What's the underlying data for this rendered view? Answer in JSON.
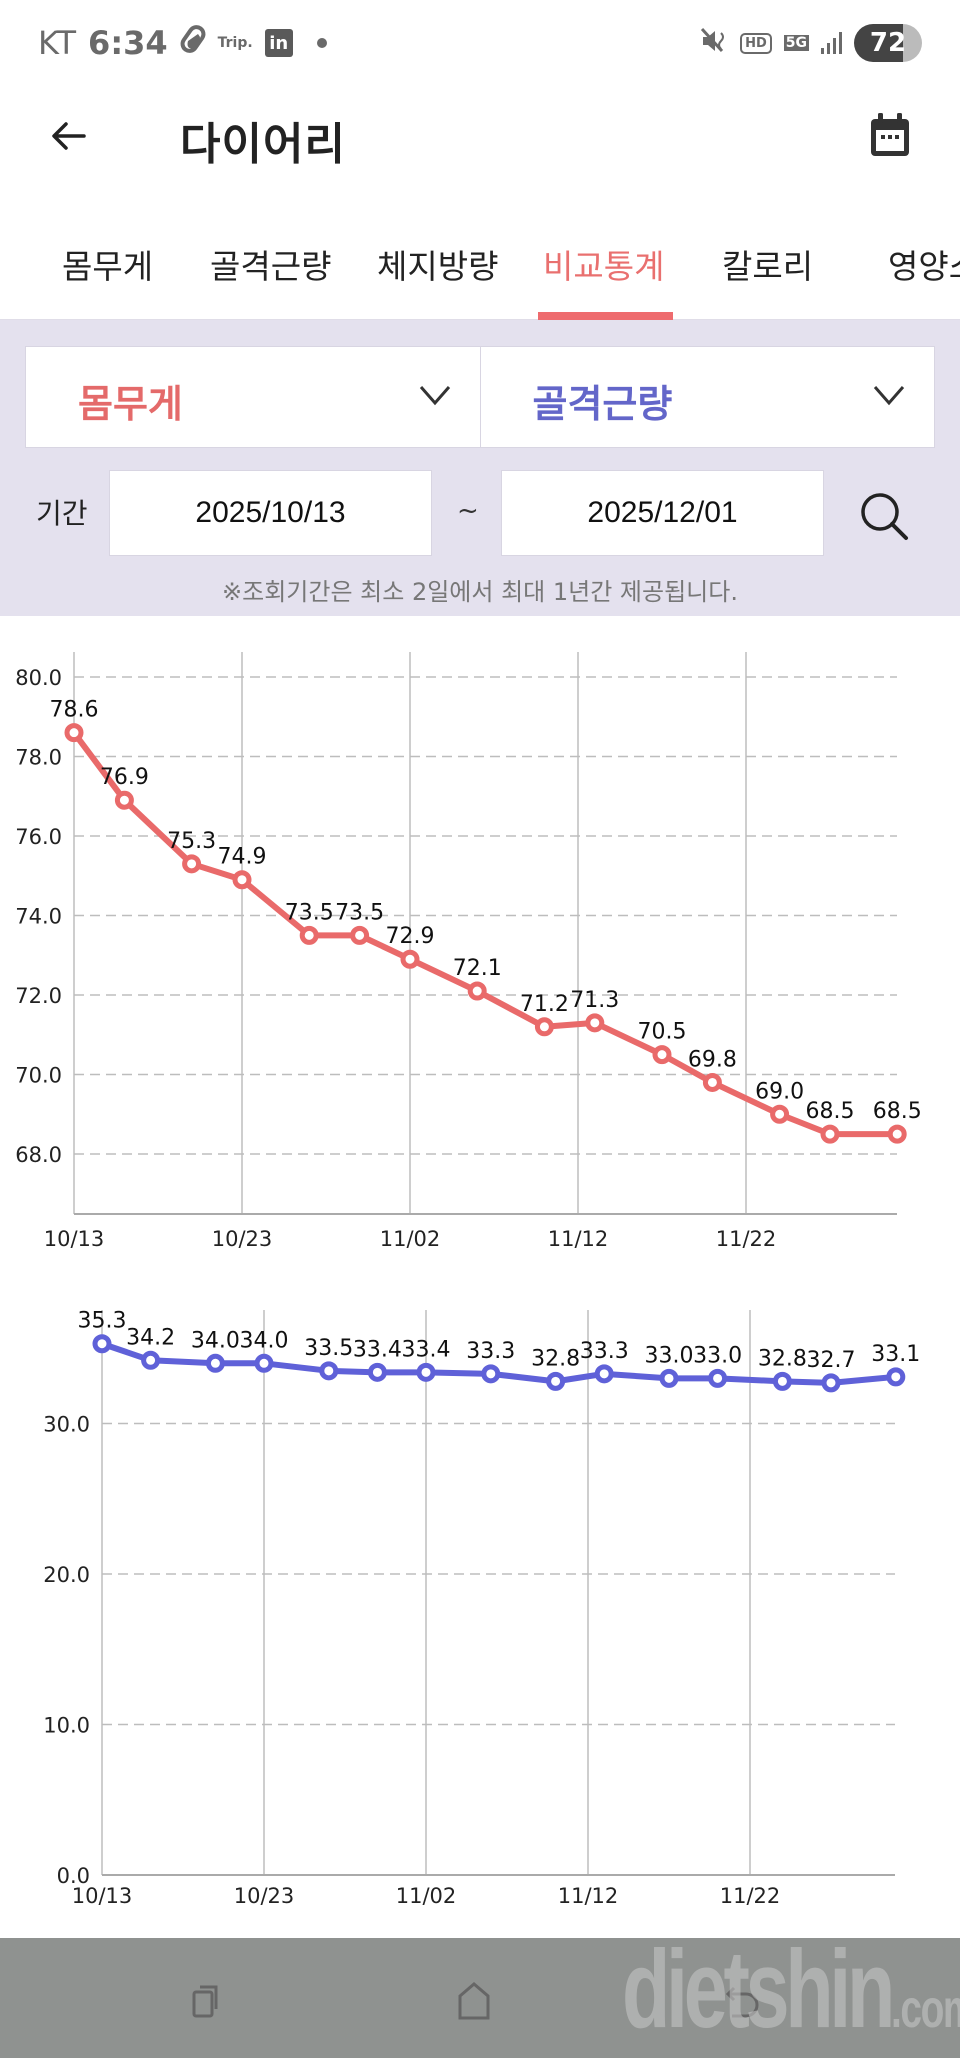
{
  "status_bar": {
    "carrier": "KT",
    "time": "6:34",
    "notif_trip": "Trip.",
    "notif_linkedin": "in",
    "hd": "HD",
    "network": "5G",
    "battery": "72"
  },
  "app_bar": {
    "title": "다이어리",
    "back_icon": "arrow-left-icon",
    "calendar_icon": "calendar-icon"
  },
  "tabs": [
    {
      "label": "몸무게",
      "active": false
    },
    {
      "label": "골격근량",
      "active": false
    },
    {
      "label": "체지방량",
      "active": false
    },
    {
      "label": "비교통계",
      "active": true
    },
    {
      "label": "칼로리",
      "active": false
    },
    {
      "label": "영양소",
      "active": false
    }
  ],
  "filter": {
    "select_1": {
      "value": "몸무게",
      "color": "#e46a6a"
    },
    "select_2": {
      "value": "골격근량",
      "color": "#6366c9"
    },
    "period_label": "기간",
    "start_date": "2025/10/13",
    "separator": "~",
    "end_date": "2025/12/01",
    "notice": "※조회기간은 최소 2일에서 최대 1년간 제공됩니다."
  },
  "colors": {
    "accent": "#ee6b6e",
    "weight_line": "#e96a6a",
    "muscle_line": "#5f61d8",
    "panel_bg": "#e4e1ee",
    "nav_bg": "#8f9290"
  },
  "chart_data": [
    {
      "type": "line",
      "title": "몸무게",
      "xlabel": "",
      "ylabel": "",
      "x_ticks": [
        "10/13",
        "10/23",
        "11/02",
        "11/12",
        "11/22"
      ],
      "y_ticks": [
        "68.0",
        "70.0",
        "72.0",
        "74.0",
        "76.0",
        "78.0",
        "80.0"
      ],
      "ylim": [
        67.3,
        80.6
      ],
      "grid": true,
      "x_day_offsets": [
        0,
        3,
        7,
        10,
        14,
        17,
        20,
        24,
        28,
        31,
        35,
        38,
        42,
        45,
        49
      ],
      "series": [
        {
          "name": "몸무게",
          "color": "#e96a6a",
          "values": [
            78.6,
            76.9,
            75.3,
            74.9,
            73.5,
            73.5,
            72.9,
            72.1,
            71.2,
            71.3,
            70.5,
            69.8,
            69.0,
            68.5,
            68.5
          ]
        }
      ]
    },
    {
      "type": "line",
      "title": "골격근량",
      "xlabel": "",
      "ylabel": "",
      "x_ticks": [
        "10/13",
        "10/23",
        "11/02",
        "11/12",
        "11/22"
      ],
      "y_ticks": [
        "0.0",
        "10.0",
        "20.0",
        "30.0"
      ],
      "ylim": [
        0,
        37
      ],
      "grid": true,
      "x_day_offsets": [
        0,
        3,
        7,
        10,
        14,
        17,
        20,
        24,
        28,
        31,
        35,
        38,
        42,
        45,
        49
      ],
      "series": [
        {
          "name": "골격근량",
          "color": "#5f61d8",
          "values": [
            35.3,
            34.2,
            34.0,
            34.0,
            33.5,
            33.4,
            33.4,
            33.3,
            32.8,
            33.3,
            33.0,
            33.0,
            32.8,
            32.7,
            33.1
          ]
        }
      ]
    }
  ],
  "nav_bar": {
    "recent_icon": "recent-apps-icon",
    "home_icon": "home-icon",
    "back_icon": "back-icon",
    "watermark": "dietshin",
    "watermark_suffix": ".com"
  }
}
